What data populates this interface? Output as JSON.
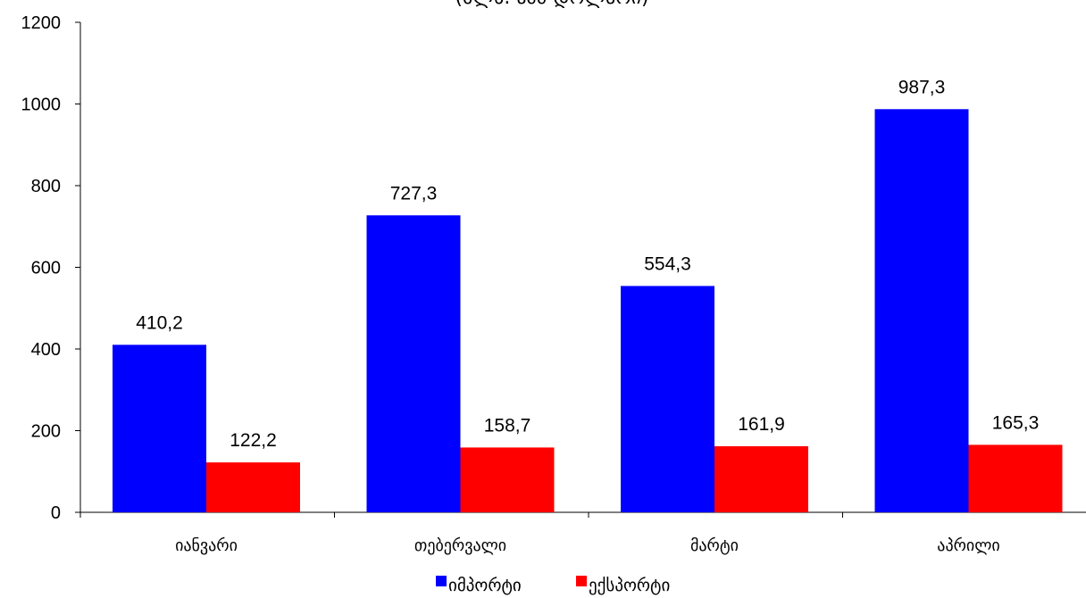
{
  "chart_data": {
    "type": "bar",
    "title": "(მლნ. აშშ დოლარი)",
    "categories": [
      "იანვარი",
      "თებერვალი",
      "მარტი",
      "აპრილი"
    ],
    "series": [
      {
        "name": "იმპორტი",
        "values": [
          410.2,
          727.3,
          554.3,
          987.3
        ],
        "labels": [
          "410,2",
          "727,3",
          "554,3",
          "987,3"
        ],
        "color": "#0000ff"
      },
      {
        "name": "ექსპორტი",
        "values": [
          122.2,
          158.7,
          161.9,
          165.3
        ],
        "labels": [
          "122,2",
          "158,7",
          "161,9",
          "165,3"
        ],
        "color": "#ff0000"
      }
    ],
    "ylim": [
      0,
      1200
    ],
    "yticks": [
      0,
      200,
      400,
      600,
      800,
      1000,
      1200
    ],
    "xlabel": "",
    "ylabel": "",
    "grid": false,
    "legend": "bottom"
  }
}
